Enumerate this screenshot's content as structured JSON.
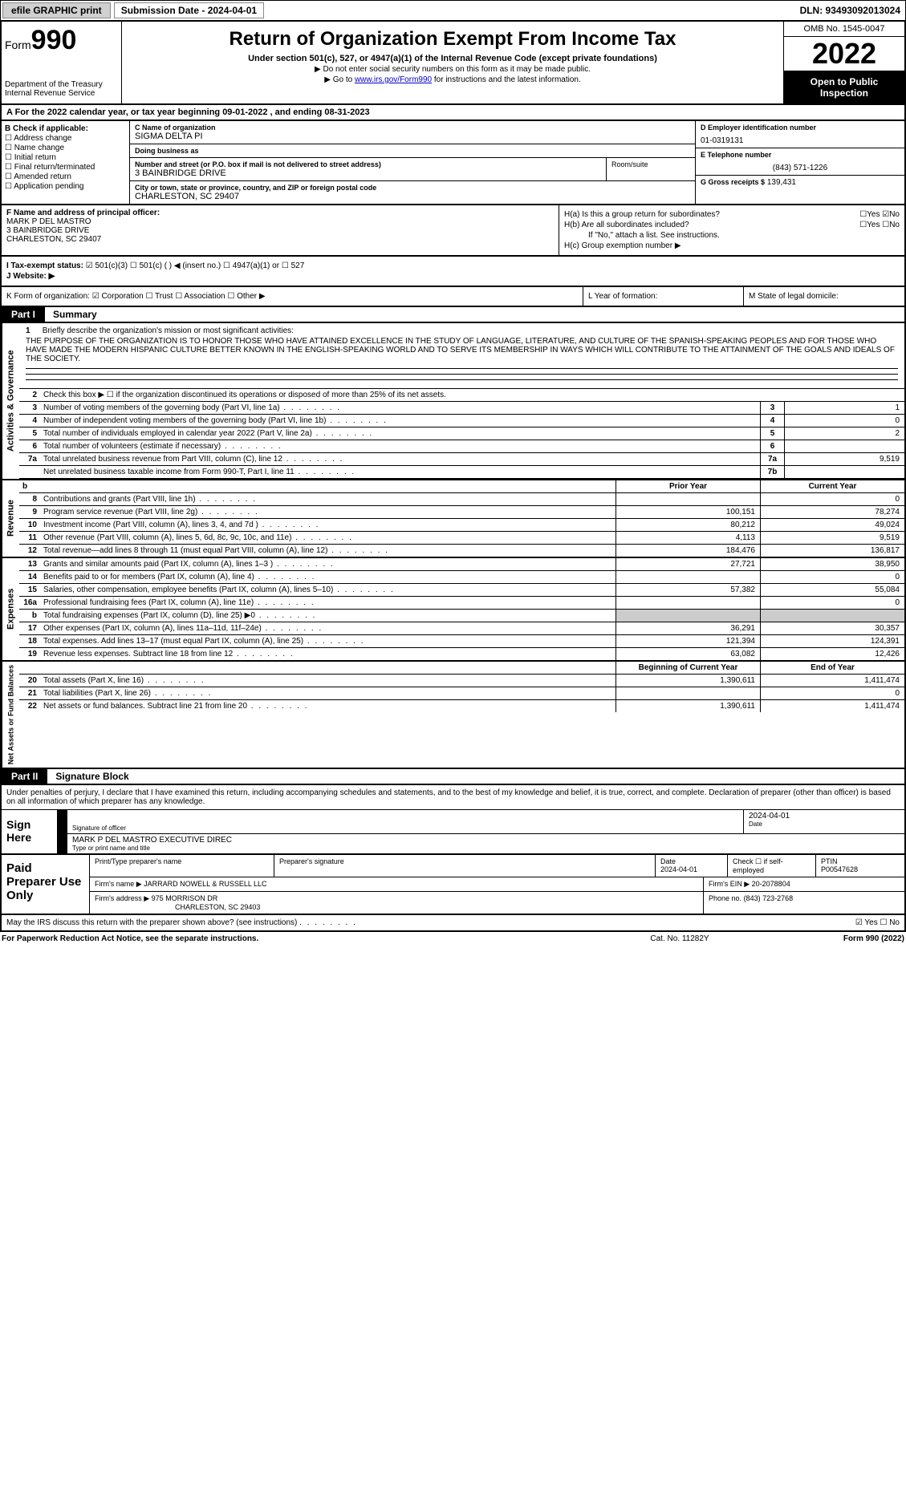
{
  "topbar": {
    "efile": "efile GRAPHIC print",
    "submission": "Submission Date - 2024-04-01",
    "dln": "DLN: 93493092013024"
  },
  "header": {
    "form_label": "Form",
    "form_num": "990",
    "dept": "Department of the Treasury",
    "irs": "Internal Revenue Service",
    "title": "Return of Organization Exempt From Income Tax",
    "sub": "Under section 501(c), 527, or 4947(a)(1) of the Internal Revenue Code (except private foundations)",
    "note1": "▶ Do not enter social security numbers on this form as it may be made public.",
    "note2_pre": "▶ Go to ",
    "note2_link": "www.irs.gov/Form990",
    "note2_post": " for instructions and the latest information.",
    "omb": "OMB No. 1545-0047",
    "year": "2022",
    "open": "Open to Public Inspection"
  },
  "row_a": "A For the 2022 calendar year, or tax year beginning 09-01-2022   , and ending 08-31-2023",
  "col_b": {
    "hdr": "B Check if applicable:",
    "opts": [
      "☐ Address change",
      "☐ Name change",
      "☐ Initial return",
      "☐ Final return/terminated",
      "☐ Amended return",
      "☐ Application pending"
    ]
  },
  "col_c": {
    "name_lbl": "C Name of organization",
    "name": "SIGMA DELTA PI",
    "dba_lbl": "Doing business as",
    "dba": "",
    "addr_lbl": "Number and street (or P.O. box if mail is not delivered to street address)",
    "addr": "3 BAINBRIDGE DRIVE",
    "room_lbl": "Room/suite",
    "city_lbl": "City or town, state or province, country, and ZIP or foreign postal code",
    "city": "CHARLESTON, SC  29407"
  },
  "col_d": {
    "ein_lbl": "D Employer identification number",
    "ein": "01-0319131",
    "tel_lbl": "E Telephone number",
    "tel": "(843) 571-1226",
    "gross_lbl": "G Gross receipts $",
    "gross": "139,431"
  },
  "col_f": {
    "lbl": "F Name and address of principal officer:",
    "name": "MARK P DEL MASTRO",
    "addr1": "3 BAINBRIDGE DRIVE",
    "addr2": "CHARLESTON, SC  29407"
  },
  "col_h": {
    "ha": "H(a)  Is this a group return for subordinates?",
    "hb": "H(b)  Are all subordinates included?",
    "hb_note": "If \"No,\" attach a list. See instructions.",
    "hc": "H(c)  Group exemption number ▶"
  },
  "row_i": {
    "lbl": "I  Tax-exempt status:",
    "opts": "☑ 501(c)(3)   ☐ 501(c) (  ) ◀ (insert no.)   ☐ 4947(a)(1) or   ☐ 527"
  },
  "row_j": {
    "lbl": "J  Website: ▶",
    "val": ""
  },
  "row_k": {
    "k1": "K Form of organization:  ☑ Corporation  ☐ Trust  ☐ Association  ☐ Other ▶",
    "k2": "L Year of formation:",
    "k3": "M State of legal domicile:"
  },
  "part1": {
    "tag": "Part I",
    "title": "Summary"
  },
  "mission": {
    "num": "1",
    "lbl": "Briefly describe the organization's mission or most significant activities:",
    "txt": "THE PURPOSE OF THE ORGANIZATION IS TO HONOR THOSE WHO HAVE ATTAINED EXCELLENCE IN THE STUDY OF LANGUAGE, LITERATURE, AND CULTURE OF THE SPANISH-SPEAKING PEOPLES AND FOR THOSE WHO HAVE MADE THE MODERN HISPANIC CULTURE BETTER KNOWN IN THE ENGLISH-SPEAKING WORLD AND TO SERVE ITS MEMBERSHIP IN WAYS WHICH WILL CONTRIBUTE TO THE ATTAINMENT OF THE GOALS AND IDEALS OF THE SOCIETY."
  },
  "gov_side": "Activities & Governance",
  "gov_lines": [
    {
      "n": "2",
      "d": "Check this box ▶ ☐ if the organization discontinued its operations or disposed of more than 25% of its net assets.",
      "box": "",
      "v": ""
    },
    {
      "n": "3",
      "d": "Number of voting members of the governing body (Part VI, line 1a)",
      "box": "3",
      "v": "1"
    },
    {
      "n": "4",
      "d": "Number of independent voting members of the governing body (Part VI, line 1b)",
      "box": "4",
      "v": "0"
    },
    {
      "n": "5",
      "d": "Total number of individuals employed in calendar year 2022 (Part V, line 2a)",
      "box": "5",
      "v": "2"
    },
    {
      "n": "6",
      "d": "Total number of volunteers (estimate if necessary)",
      "box": "6",
      "v": ""
    },
    {
      "n": "7a",
      "d": "Total unrelated business revenue from Part VIII, column (C), line 12",
      "box": "7a",
      "v": "9,519"
    },
    {
      "n": "",
      "d": "Net unrelated business taxable income from Form 990-T, Part I, line 11",
      "box": "7b",
      "v": ""
    }
  ],
  "rev_side": "Revenue",
  "rev_hdr": {
    "prior": "Prior Year",
    "curr": "Current Year"
  },
  "rev_lines": [
    {
      "n": "8",
      "d": "Contributions and grants (Part VIII, line 1h)",
      "p": "",
      "c": "0"
    },
    {
      "n": "9",
      "d": "Program service revenue (Part VIII, line 2g)",
      "p": "100,151",
      "c": "78,274"
    },
    {
      "n": "10",
      "d": "Investment income (Part VIII, column (A), lines 3, 4, and 7d )",
      "p": "80,212",
      "c": "49,024"
    },
    {
      "n": "11",
      "d": "Other revenue (Part VIII, column (A), lines 5, 6d, 8c, 9c, 10c, and 11e)",
      "p": "4,113",
      "c": "9,519"
    },
    {
      "n": "12",
      "d": "Total revenue—add lines 8 through 11 (must equal Part VIII, column (A), line 12)",
      "p": "184,476",
      "c": "136,817"
    }
  ],
  "exp_side": "Expenses",
  "exp_lines": [
    {
      "n": "13",
      "d": "Grants and similar amounts paid (Part IX, column (A), lines 1–3 )",
      "p": "27,721",
      "c": "38,950"
    },
    {
      "n": "14",
      "d": "Benefits paid to or for members (Part IX, column (A), line 4)",
      "p": "",
      "c": "0"
    },
    {
      "n": "15",
      "d": "Salaries, other compensation, employee benefits (Part IX, column (A), lines 5–10)",
      "p": "57,382",
      "c": "55,084"
    },
    {
      "n": "16a",
      "d": "Professional fundraising fees (Part IX, column (A), line 11e)",
      "p": "",
      "c": "0"
    },
    {
      "n": "b",
      "d": "Total fundraising expenses (Part IX, column (D), line 25) ▶0",
      "p": "GREY",
      "c": "GREY"
    },
    {
      "n": "17",
      "d": "Other expenses (Part IX, column (A), lines 11a–11d, 11f–24e)",
      "p": "36,291",
      "c": "30,357"
    },
    {
      "n": "18",
      "d": "Total expenses. Add lines 13–17 (must equal Part IX, column (A), line 25)",
      "p": "121,394",
      "c": "124,391"
    },
    {
      "n": "19",
      "d": "Revenue less expenses. Subtract line 18 from line 12",
      "p": "63,082",
      "c": "12,426"
    }
  ],
  "net_side": "Net Assets or Fund Balances",
  "net_hdr": {
    "prior": "Beginning of Current Year",
    "curr": "End of Year"
  },
  "net_lines": [
    {
      "n": "20",
      "d": "Total assets (Part X, line 16)",
      "p": "1,390,611",
      "c": "1,411,474"
    },
    {
      "n": "21",
      "d": "Total liabilities (Part X, line 26)",
      "p": "",
      "c": "0"
    },
    {
      "n": "22",
      "d": "Net assets or fund balances. Subtract line 21 from line 20",
      "p": "1,390,611",
      "c": "1,411,474"
    }
  ],
  "part2": {
    "tag": "Part II",
    "title": "Signature Block"
  },
  "sig": {
    "intro": "Under penalties of perjury, I declare that I have examined this return, including accompanying schedules and statements, and to the best of my knowledge and belief, it is true, correct, and complete. Declaration of preparer (other than officer) is based on all information of which preparer has any knowledge.",
    "sign_here": "Sign Here",
    "sig_officer_lbl": "Signature of officer",
    "date": "2024-04-01",
    "date_lbl": "Date",
    "name": "MARK P DEL MASTRO  EXECUTIVE DIREC",
    "name_lbl": "Type or print name and title"
  },
  "prep": {
    "title": "Paid Preparer Use Only",
    "pname_lbl": "Print/Type preparer's name",
    "psig_lbl": "Preparer's signature",
    "pdate_lbl": "Date",
    "pdate": "2024-04-01",
    "pself": "Check ☐ if self-employed",
    "ptin_lbl": "PTIN",
    "ptin": "P00547628",
    "firm_lbl": "Firm's name   ▶",
    "firm": "JARRARD NOWELL & RUSSELL LLC",
    "ein_lbl": "Firm's EIN ▶",
    "ein": "20-2078804",
    "addr_lbl": "Firm's address ▶",
    "addr1": "975 MORRISON DR",
    "addr2": "CHARLESTON, SC  29403",
    "phone_lbl": "Phone no.",
    "phone": "(843) 723-2768"
  },
  "footer_q": "May the IRS discuss this return with the preparer shown above? (see instructions)",
  "footer": {
    "left": "For Paperwork Reduction Act Notice, see the separate instructions.",
    "center": "Cat. No. 11282Y",
    "right": "Form 990 (2022)"
  }
}
